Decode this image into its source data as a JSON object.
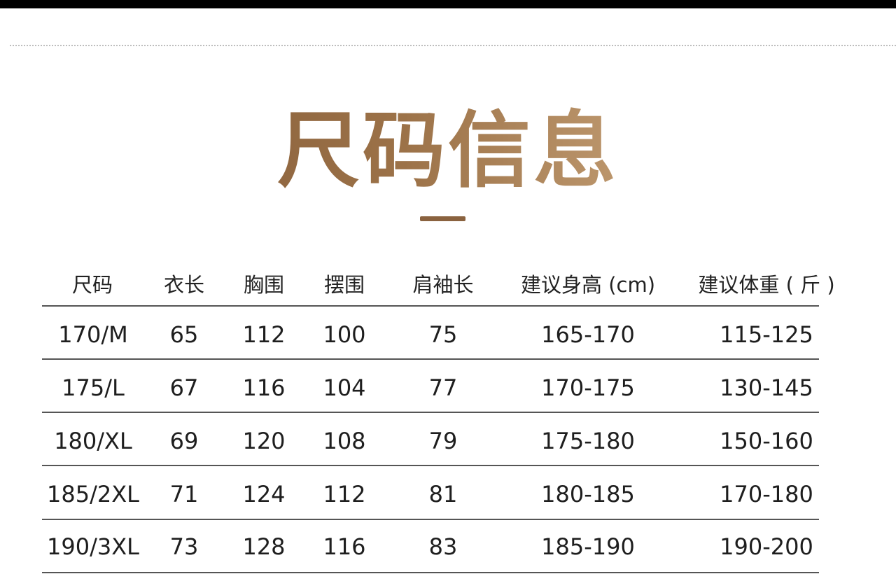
{
  "title": "尺码信息",
  "accent_color": "#9c7248",
  "table": {
    "headers": [
      "尺码",
      "衣长",
      "胸围",
      "摆围",
      "肩袖长",
      "建议身高 (cm)",
      "建议体重 ( 斤 )"
    ],
    "rows": [
      [
        "170/M",
        "65",
        "112",
        "100",
        "75",
        "165-170",
        "115-125"
      ],
      [
        "175/L",
        "67",
        "116",
        "104",
        "77",
        "170-175",
        "130-145"
      ],
      [
        "180/XL",
        "69",
        "120",
        "108",
        "79",
        "175-180",
        "150-160"
      ],
      [
        "185/2XL",
        "71",
        "124",
        "112",
        "81",
        "180-185",
        "170-180"
      ],
      [
        "190/3XL",
        "73",
        "128",
        "116",
        "83",
        "185-190",
        "190-200"
      ]
    ]
  }
}
